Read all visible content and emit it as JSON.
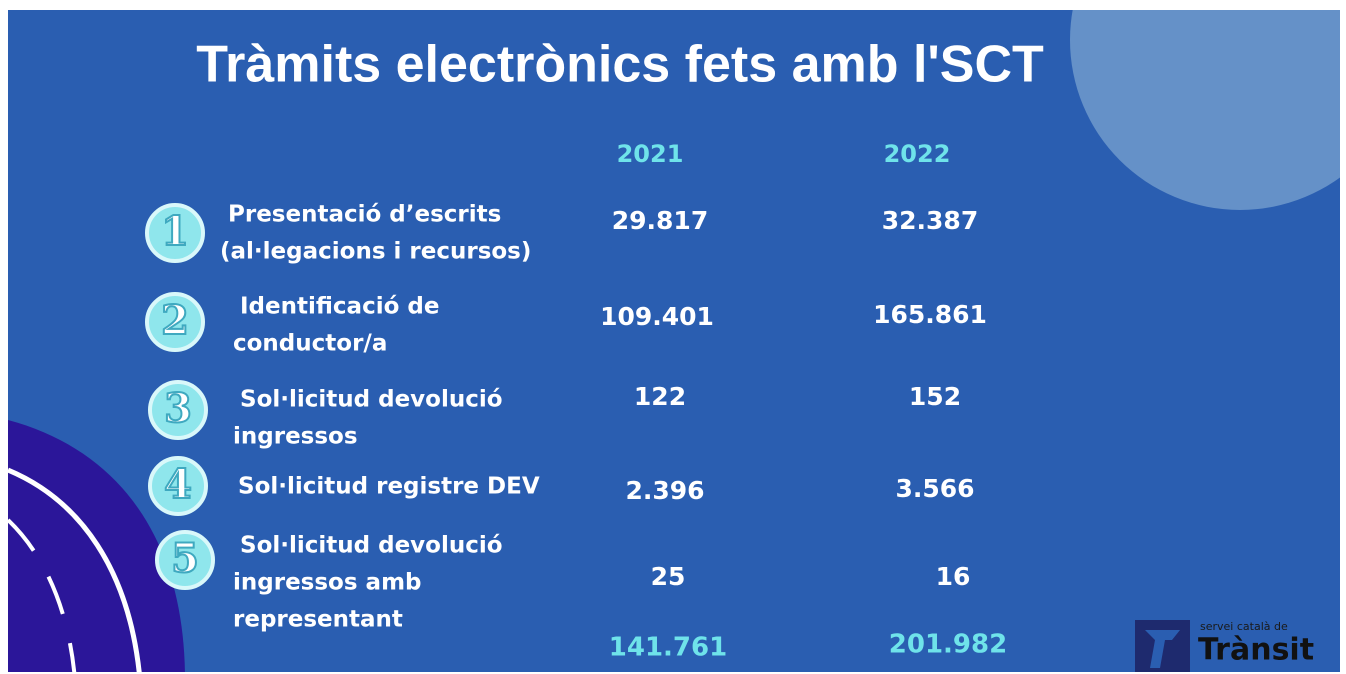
{
  "header": {
    "title": "Tràmits electrònics fets amb l'SCT"
  },
  "table": {
    "columns": [
      "2021",
      "2022"
    ],
    "rows": [
      {
        "number": "1",
        "label": [
          "Presentació d’escrits",
          "(al·legacions i recursos)"
        ],
        "values": [
          "29.817",
          "32.387"
        ]
      },
      {
        "number": "2",
        "label": [
          "Identificació de",
          "conductor/a"
        ],
        "values": [
          "109.401",
          "165.861"
        ]
      },
      {
        "number": "3",
        "label": [
          "Sol·licitud devolució",
          "ingressos"
        ],
        "values": [
          "122",
          "152"
        ]
      },
      {
        "number": "4",
        "label": [
          "Sol·licitud registre DEV"
        ],
        "values": [
          "2.396",
          "3.566"
        ]
      },
      {
        "number": "5",
        "label": [
          "Sol·licitud devolució",
          "ingressos amb",
          "representant"
        ],
        "values": [
          "25",
          "16"
        ]
      }
    ],
    "totals": [
      "141.761",
      "201.982"
    ]
  },
  "logo": {
    "tagline": "servei català de",
    "name": "Trànsit"
  }
}
